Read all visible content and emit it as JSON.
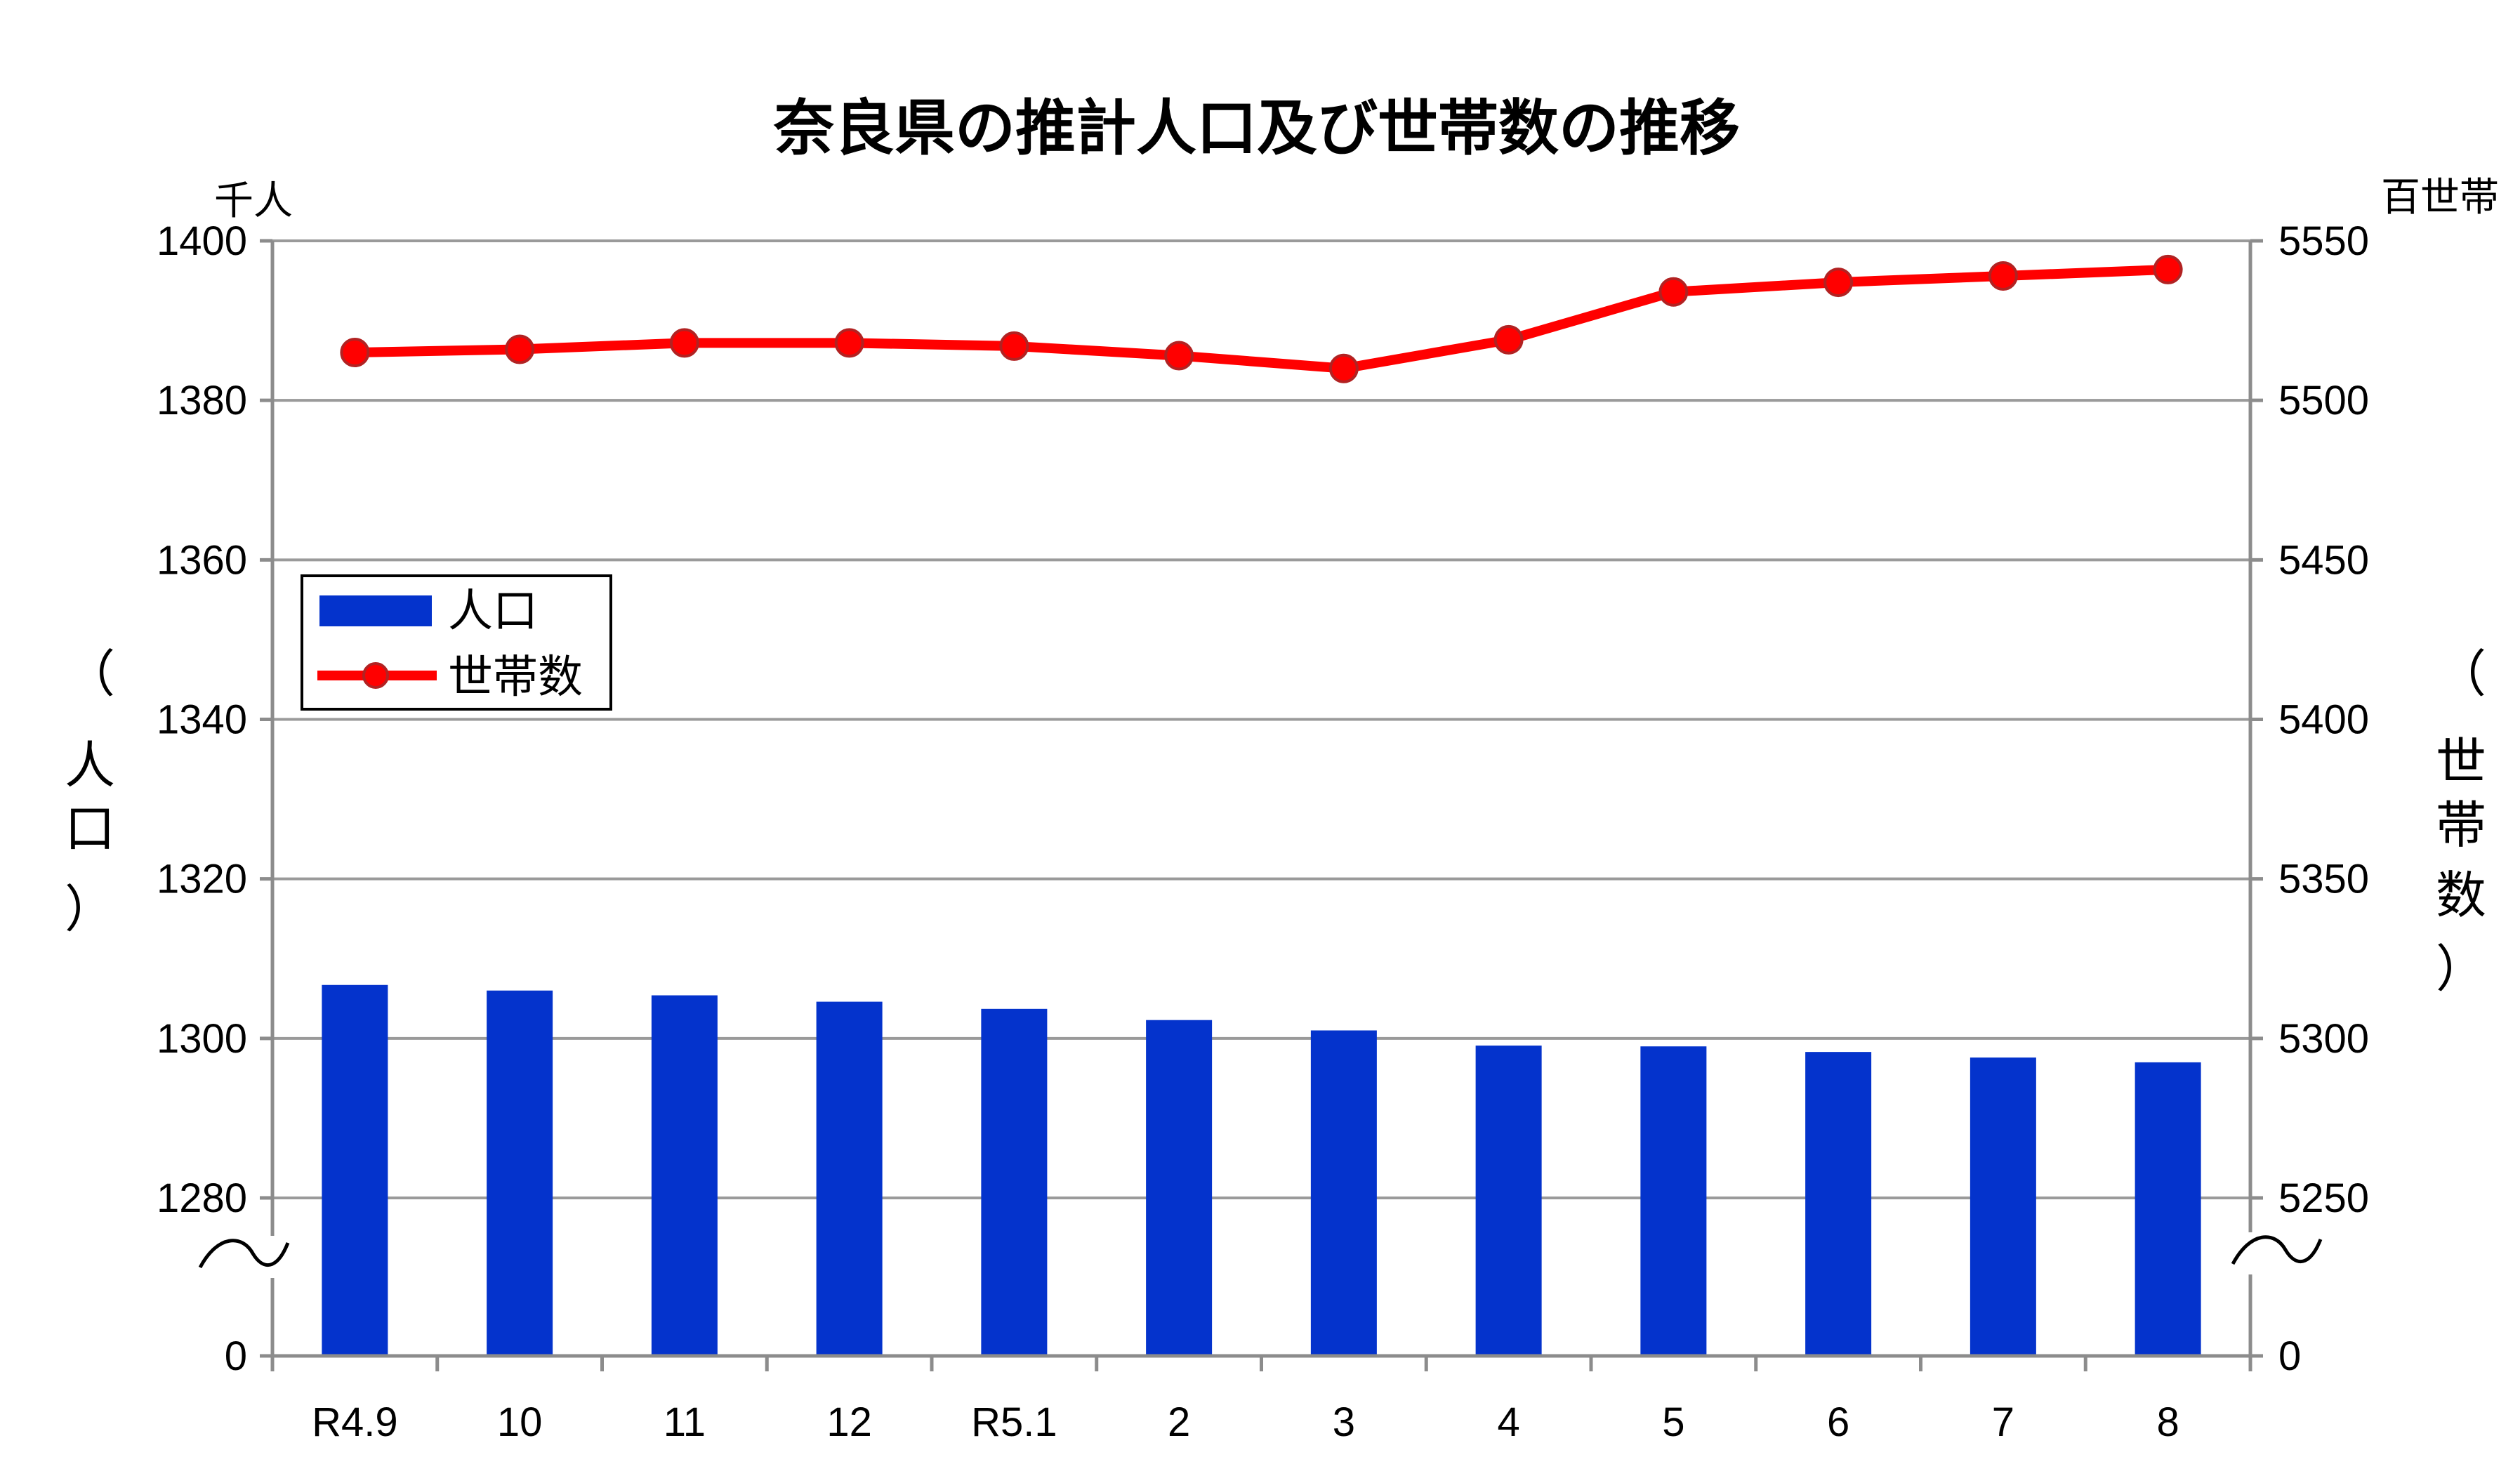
{
  "chart_data": {
    "type": "bar+line",
    "title": "奈良県の推計人口及び世帯数の推移",
    "categories": [
      "R4.9",
      "10",
      "11",
      "12",
      "R5.1",
      "2",
      "3",
      "4",
      "5",
      "6",
      "7",
      "8"
    ],
    "series": [
      {
        "name": "人口",
        "type": "bar",
        "axis": "left",
        "color": "#0433cc",
        "values": [
          1306.7,
          1306.0,
          1305.4,
          1304.6,
          1303.7,
          1302.3,
          1301.0,
          1299.1,
          1299.0,
          1298.3,
          1297.6,
          1297.0
        ]
      },
      {
        "name": "世帯数",
        "type": "line",
        "axis": "right",
        "color": "#ff0000",
        "values": [
          5515,
          5516,
          5518,
          5518,
          5517,
          5514,
          5510,
          5519,
          5534,
          5537,
          5539,
          5541
        ]
      }
    ],
    "y_left": {
      "label_chars": [
        "（",
        "人",
        "口",
        "）"
      ],
      "unit": "千人",
      "ticks": [
        "1400",
        "1380",
        "1360",
        "1340",
        "1320",
        "1300",
        "1280",
        "0"
      ],
      "range_above_break": [
        1280,
        1400
      ]
    },
    "y_right": {
      "label_chars": [
        "（",
        "世",
        "帯",
        "数",
        "）"
      ],
      "unit": "百世帯",
      "ticks": [
        "5550",
        "5500",
        "5450",
        "5400",
        "5350",
        "5300",
        "5250",
        "0"
      ],
      "range_above_break": [
        5250,
        5550
      ]
    },
    "axis_break": true,
    "grid": true,
    "legend": {
      "placement": "top-left"
    }
  }
}
